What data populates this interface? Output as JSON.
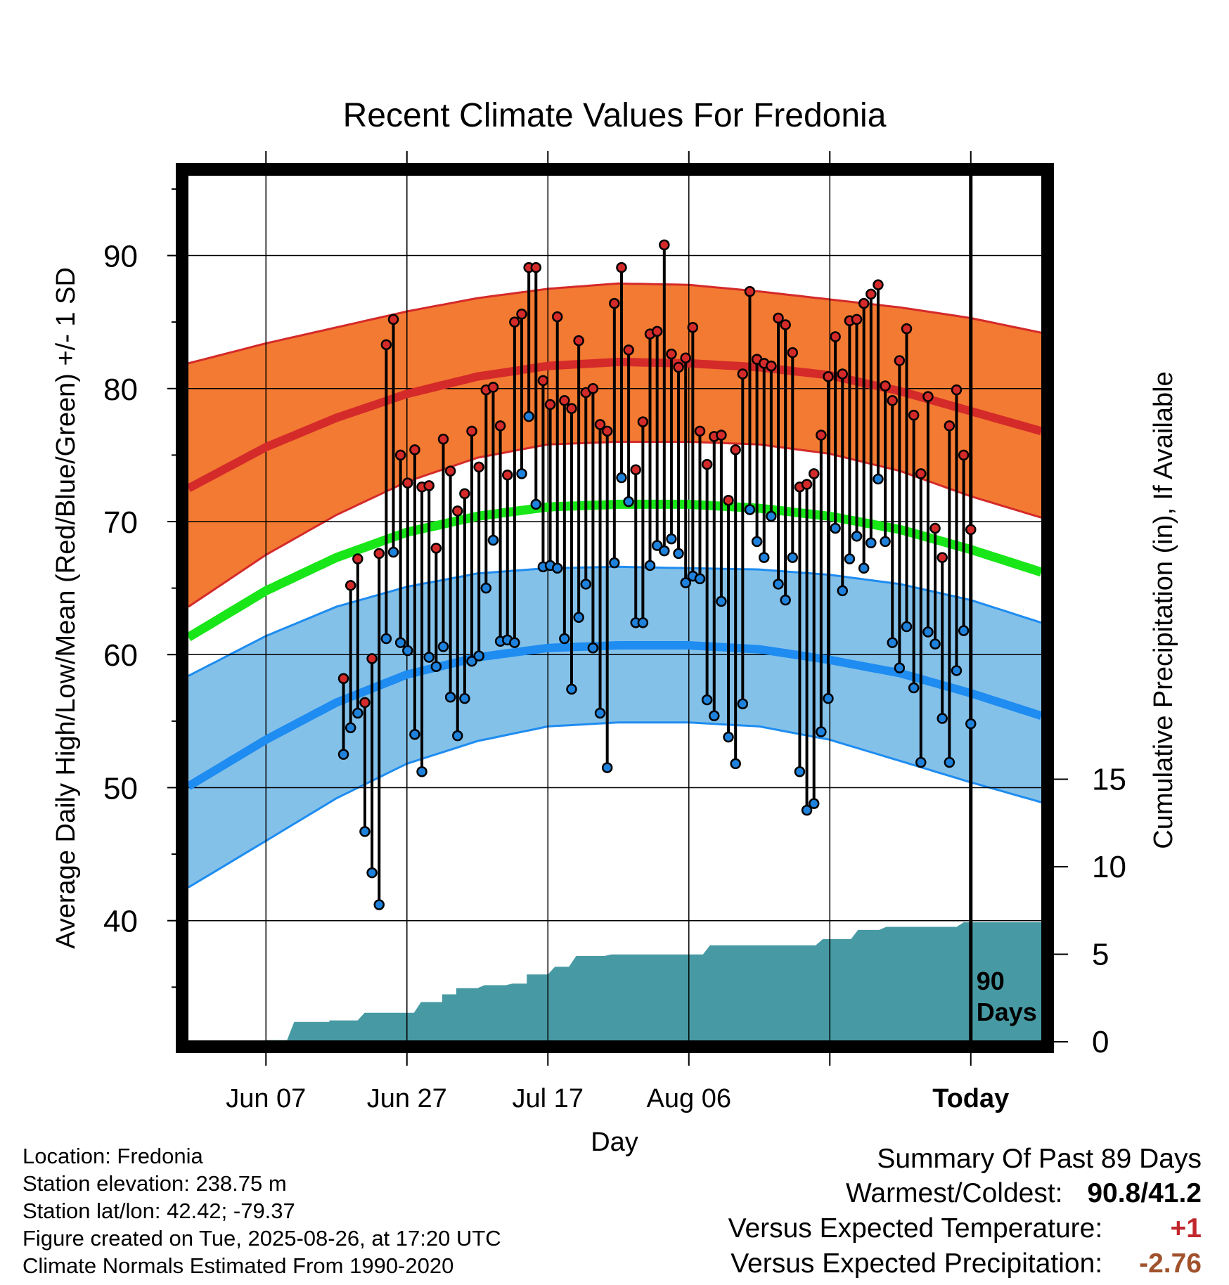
{
  "chart_data": {
    "type": "line",
    "title": "Recent Climate Values For Fredonia",
    "xlabel": "Day",
    "ylabel": "Average Daily High/Low/Mean (Red/Blue/Green) +/- 1 SD",
    "y2label": "Cumulative Precipitation (in), If Available",
    "x_ticks": [
      "Jun 07",
      "Jun 27",
      "Jul 17",
      "Aug 06",
      "Today"
    ],
    "y_ticks": [
      40,
      50,
      60,
      70,
      80,
      90
    ],
    "y2_ticks": [
      0,
      5,
      10,
      15
    ],
    "ylim": [
      31,
      96
    ],
    "y2lim": [
      0,
      15
    ],
    "x_range_days": [
      -111,
      10
    ],
    "window_label": "90 Days",
    "grid": true,
    "colors": {
      "normal_high_band": "#f37a32",
      "normal_high_line": "#d42a2a",
      "normal_mean_line": "#19e619",
      "normal_low_band": "#84c1e9",
      "normal_low_line": "#1e8cf0",
      "precip": "#479aa3",
      "high_dot": "#d42a2a",
      "low_dot": "#1e82dc"
    },
    "normal_high_mean": [
      [
        -111,
        72.5
      ],
      [
        -100,
        75.6
      ],
      [
        -90,
        77.8
      ],
      [
        -80,
        79.6
      ],
      [
        -70,
        80.9
      ],
      [
        -60,
        81.7
      ],
      [
        -50,
        82.0
      ],
      [
        -40,
        81.9
      ],
      [
        -30,
        81.6
      ],
      [
        -20,
        81.0
      ],
      [
        -10,
        79.8
      ],
      [
        0,
        78.3
      ],
      [
        10,
        76.8
      ]
    ],
    "normal_high_upper": [
      [
        -111,
        81.9
      ],
      [
        -100,
        83.4
      ],
      [
        -90,
        84.6
      ],
      [
        -80,
        85.8
      ],
      [
        -70,
        86.8
      ],
      [
        -60,
        87.5
      ],
      [
        -50,
        87.9
      ],
      [
        -40,
        87.8
      ],
      [
        -30,
        87.3
      ],
      [
        -20,
        86.7
      ],
      [
        -10,
        86.1
      ],
      [
        0,
        85.3
      ],
      [
        10,
        84.2
      ]
    ],
    "normal_high_lower": [
      [
        -111,
        63.6
      ],
      [
        -100,
        67.5
      ],
      [
        -90,
        70.5
      ],
      [
        -80,
        73.0
      ],
      [
        -70,
        74.8
      ],
      [
        -60,
        75.8
      ],
      [
        -50,
        76.0
      ],
      [
        -40,
        76.0
      ],
      [
        -30,
        75.8
      ],
      [
        -20,
        75.1
      ],
      [
        -10,
        73.8
      ],
      [
        0,
        71.9
      ],
      [
        10,
        70.3
      ]
    ],
    "normal_mean": [
      [
        -111,
        61.3
      ],
      [
        -100,
        64.8
      ],
      [
        -90,
        67.3
      ],
      [
        -80,
        69.2
      ],
      [
        -70,
        70.4
      ],
      [
        -60,
        71.1
      ],
      [
        -50,
        71.3
      ],
      [
        -40,
        71.3
      ],
      [
        -30,
        71.0
      ],
      [
        -20,
        70.4
      ],
      [
        -10,
        69.4
      ],
      [
        0,
        67.9
      ],
      [
        10,
        66.2
      ]
    ],
    "normal_low_mean": [
      [
        -111,
        50.1
      ],
      [
        -100,
        53.6
      ],
      [
        -90,
        56.4
      ],
      [
        -80,
        58.5
      ],
      [
        -70,
        59.8
      ],
      [
        -60,
        60.5
      ],
      [
        -50,
        60.7
      ],
      [
        -40,
        60.7
      ],
      [
        -30,
        60.4
      ],
      [
        -20,
        59.6
      ],
      [
        -10,
        58.6
      ],
      [
        0,
        57.1
      ],
      [
        10,
        55.4
      ]
    ],
    "normal_low_upper": [
      [
        -111,
        58.4
      ],
      [
        -100,
        61.4
      ],
      [
        -90,
        63.6
      ],
      [
        -80,
        65.1
      ],
      [
        -70,
        66.1
      ],
      [
        -60,
        66.5
      ],
      [
        -50,
        66.6
      ],
      [
        -40,
        66.5
      ],
      [
        -30,
        66.4
      ],
      [
        -20,
        66.0
      ],
      [
        -10,
        65.3
      ],
      [
        0,
        64.1
      ],
      [
        10,
        62.4
      ]
    ],
    "normal_low_lower": [
      [
        -111,
        42.5
      ],
      [
        -100,
        46.0
      ],
      [
        -90,
        49.2
      ],
      [
        -80,
        51.8
      ],
      [
        -70,
        53.5
      ],
      [
        -60,
        54.6
      ],
      [
        -50,
        54.9
      ],
      [
        -40,
        54.9
      ],
      [
        -30,
        54.6
      ],
      [
        -20,
        53.6
      ],
      [
        -10,
        52.0
      ],
      [
        0,
        50.4
      ],
      [
        10,
        48.9
      ]
    ],
    "high_values": [
      58.2,
      65.2,
      67.2,
      56.4,
      59.7,
      67.6,
      83.3,
      85.2,
      75.0,
      72.9,
      75.4,
      72.6,
      72.7,
      68.0,
      76.2,
      73.8,
      70.8,
      72.1,
      76.8,
      74.1,
      79.9,
      80.1,
      77.2,
      73.5,
      85.0,
      85.6,
      89.1,
      89.1,
      80.6,
      78.8,
      85.4,
      79.1,
      78.5,
      83.6,
      79.7,
      80.0,
      77.3,
      76.8,
      86.4,
      89.1,
      82.9,
      73.9,
      77.5,
      84.1,
      84.3,
      90.8,
      82.6,
      81.6,
      82.3,
      84.6,
      76.8,
      74.3,
      76.4,
      76.5,
      71.6,
      75.4,
      81.1,
      87.3,
      82.2,
      81.9,
      81.7,
      85.3,
      84.8,
      82.7,
      72.6,
      72.8,
      73.6,
      76.5,
      80.9,
      83.9,
      81.1,
      85.1,
      85.2,
      86.4,
      87.1,
      87.8,
      80.2,
      79.1,
      82.1,
      84.5,
      78.0,
      73.6,
      79.4,
      69.5,
      67.3,
      77.2,
      79.9,
      75.0,
      69.4
    ],
    "low_values": [
      52.5,
      54.5,
      55.6,
      46.7,
      43.6,
      41.2,
      61.2,
      67.7,
      60.9,
      60.3,
      54.0,
      51.2,
      59.8,
      59.1,
      60.6,
      56.8,
      53.9,
      56.7,
      59.5,
      59.9,
      65.0,
      68.6,
      61.0,
      61.1,
      60.9,
      73.6,
      77.9,
      71.3,
      66.6,
      66.7,
      66.5,
      61.2,
      57.4,
      62.8,
      65.3,
      60.5,
      55.6,
      51.5,
      66.9,
      73.3,
      71.5,
      62.4,
      62.4,
      66.7,
      68.2,
      67.8,
      68.7,
      67.6,
      65.4,
      65.9,
      65.7,
      56.6,
      55.4,
      64.0,
      53.8,
      51.8,
      56.3,
      70.9,
      68.5,
      67.3,
      70.4,
      65.3,
      64.1,
      67.3,
      51.2,
      48.3,
      48.8,
      54.2,
      56.7,
      69.5,
      64.8,
      67.2,
      68.9,
      66.5,
      68.4,
      73.2,
      68.5,
      60.9,
      59.0,
      62.1,
      57.5,
      51.9,
      61.7,
      60.8,
      55.2,
      51.9,
      58.8,
      61.8,
      54.8
    ],
    "precip_cumulative": [
      [
        -111,
        0
      ],
      [
        -100,
        0
      ],
      [
        -100,
        0.02
      ],
      [
        -97,
        0.02
      ],
      [
        -96,
        1.2
      ],
      [
        -91,
        1.2
      ],
      [
        -91,
        1.3
      ],
      [
        -87,
        1.3
      ],
      [
        -86,
        1.8
      ],
      [
        -79,
        1.8
      ],
      [
        -78,
        2.5
      ],
      [
        -75,
        2.5
      ],
      [
        -75,
        3.0
      ],
      [
        -73,
        3.0
      ],
      [
        -73,
        3.4
      ],
      [
        -70,
        3.4
      ],
      [
        -69,
        3.6
      ],
      [
        -66,
        3.6
      ],
      [
        -65,
        3.7
      ],
      [
        -63,
        3.7
      ],
      [
        -63,
        4.3
      ],
      [
        -60,
        4.3
      ],
      [
        -59,
        4.8
      ],
      [
        -57,
        4.8
      ],
      [
        -56,
        5.5
      ],
      [
        -52,
        5.5
      ],
      [
        -51,
        5.6
      ],
      [
        -38,
        5.6
      ],
      [
        -37,
        6.2
      ],
      [
        -22,
        6.2
      ],
      [
        -21,
        6.6
      ],
      [
        -17,
        6.6
      ],
      [
        -16,
        7.2
      ],
      [
        -13,
        7.2
      ],
      [
        -12,
        7.4
      ],
      [
        -2,
        7.4
      ],
      [
        -1,
        7.7
      ],
      [
        10,
        7.7
      ]
    ]
  },
  "info": {
    "location": "Location: Fredonia",
    "elevation": "Station elevation: 238.75 m",
    "latlon": "Station lat/lon: 42.42; -79.37",
    "created": "Figure created on Tue, 2025-08-26, at 17:20 UTC",
    "normals": "Climate Normals Estimated From 1990-2020"
  },
  "summary": {
    "heading": "Summary Of Past 89 Days",
    "warmest_coldest_label": "Warmest/Coldest:",
    "warmest_coldest_value": "90.8/41.2",
    "temp_label": "Versus Expected Temperature:",
    "temp_value": "+1",
    "temp_color": "#c1272d",
    "precip_label": "Versus Expected Precipitation:",
    "precip_value": "-2.76",
    "precip_color": "#a0522d"
  }
}
